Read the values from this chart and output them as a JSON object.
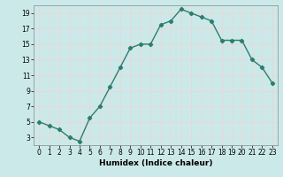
{
  "x": [
    0,
    1,
    2,
    3,
    4,
    5,
    6,
    7,
    8,
    9,
    10,
    11,
    12,
    13,
    14,
    15,
    16,
    17,
    18,
    19,
    20,
    21,
    22,
    23
  ],
  "y": [
    5,
    4.5,
    4,
    3,
    2.5,
    5.5,
    7,
    9.5,
    12,
    14.5,
    15,
    15,
    17.5,
    18,
    19.5,
    19,
    18.5,
    18,
    15.5,
    15.5,
    15.5,
    13,
    12,
    10
  ],
  "xlabel": "Humidex (Indice chaleur)",
  "xlim": [
    -0.5,
    23.5
  ],
  "ylim": [
    2.0,
    20.0
  ],
  "yticks": [
    3,
    5,
    7,
    9,
    11,
    13,
    15,
    17,
    19
  ],
  "xticks": [
    0,
    1,
    2,
    3,
    4,
    5,
    6,
    7,
    8,
    9,
    10,
    11,
    12,
    13,
    14,
    15,
    16,
    17,
    18,
    19,
    20,
    21,
    22,
    23
  ],
  "line_color": "#2e7d6e",
  "marker": "D",
  "marker_size": 2.2,
  "bg_color": "#cce9e9",
  "grid_color": "#e8d8d8",
  "line_width": 1.0,
  "tick_fontsize": 5.5,
  "xlabel_fontsize": 6.5
}
